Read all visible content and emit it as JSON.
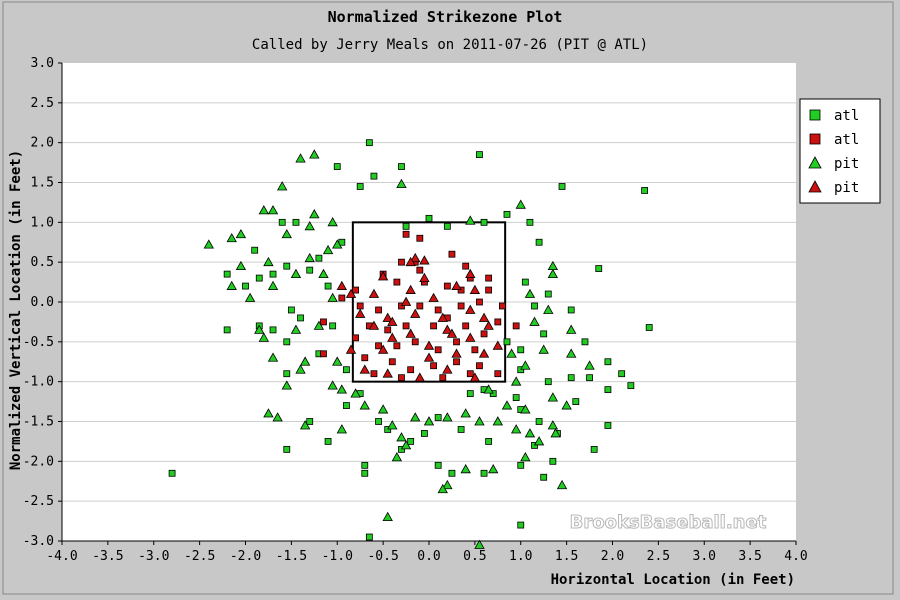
{
  "chart_data": {
    "type": "scatter",
    "title": "Normalized Strikezone Plot",
    "subtitle": "Called by Jerry Meals on 2011-07-26 (PIT @ ATL)",
    "xlabel": "Horizontal Location (in Feet)",
    "ylabel": "Normalized Vertical Location (in Feet)",
    "xlim": [
      -4.0,
      4.0
    ],
    "ylim": [
      -3.0,
      3.0
    ],
    "x_ticks": [
      "-4.0",
      "-3.5",
      "-3.0",
      "-2.5",
      "-2.0",
      "-1.5",
      "-1.0",
      "-0.5",
      "0.0",
      "0.5",
      "1.0",
      "1.5",
      "2.0",
      "2.5",
      "3.0",
      "3.5",
      "4.0"
    ],
    "y_ticks": [
      "3.0",
      "2.5",
      "2.0",
      "1.5",
      "1.0",
      "0.5",
      "0.0",
      "-0.5",
      "-1.0",
      "-1.5",
      "-2.0",
      "-2.5",
      "-3.0"
    ],
    "grid": "horizontal",
    "legend_position": "right",
    "strike_zone": {
      "x": [
        -0.83,
        0.83
      ],
      "y": [
        -1.0,
        1.0
      ]
    },
    "watermark": "BrooksBaseball.net",
    "colors": {
      "green": "#22cc22",
      "red": "#cc1111",
      "background": "#c8c8c8",
      "plot_bg": "#ffffff"
    },
    "series": [
      {
        "name": "atl",
        "marker": "square",
        "color": "#22cc22",
        "points": [
          [
            -0.65,
            2.0
          ],
          [
            -0.3,
            1.7
          ],
          [
            0.55,
            1.85
          ],
          [
            -0.75,
            1.45
          ],
          [
            -0.6,
            1.58
          ],
          [
            1.45,
            1.45
          ],
          [
            2.35,
            1.4
          ],
          [
            -1.0,
            1.7
          ],
          [
            0.0,
            1.05
          ],
          [
            0.85,
            1.1
          ],
          [
            1.1,
            1.0
          ],
          [
            -1.6,
            1.0
          ],
          [
            -1.45,
            1.0
          ],
          [
            -0.95,
            0.75
          ],
          [
            -1.9,
            0.65
          ],
          [
            -2.2,
            0.35
          ],
          [
            -1.85,
            0.3
          ],
          [
            -1.7,
            0.35
          ],
          [
            -2.0,
            0.2
          ],
          [
            -1.55,
            0.45
          ],
          [
            -1.3,
            0.4
          ],
          [
            -1.2,
            0.55
          ],
          [
            -1.1,
            0.2
          ],
          [
            -1.5,
            -0.1
          ],
          [
            -1.7,
            -0.35
          ],
          [
            -1.85,
            -0.3
          ],
          [
            -2.2,
            -0.35
          ],
          [
            -1.55,
            -0.5
          ],
          [
            -1.4,
            -0.2
          ],
          [
            -1.05,
            -0.3
          ],
          [
            -1.2,
            -0.65
          ],
          [
            -1.55,
            -0.9
          ],
          [
            -0.9,
            -0.85
          ],
          [
            1.2,
            0.75
          ],
          [
            1.05,
            0.25
          ],
          [
            1.3,
            0.1
          ],
          [
            1.15,
            -0.05
          ],
          [
            1.25,
            -0.4
          ],
          [
            1.55,
            -0.1
          ],
          [
            1.7,
            -0.5
          ],
          [
            1.85,
            0.42
          ],
          [
            1.95,
            -0.75
          ],
          [
            2.1,
            -0.9
          ],
          [
            2.2,
            -1.05
          ],
          [
            1.75,
            -0.95
          ],
          [
            1.95,
            -1.1
          ],
          [
            1.55,
            -0.95
          ],
          [
            2.4,
            -0.32
          ],
          [
            1.0,
            -0.6
          ],
          [
            0.85,
            -0.5
          ],
          [
            1.0,
            -0.85
          ],
          [
            0.95,
            -1.2
          ],
          [
            1.0,
            -1.35
          ],
          [
            1.3,
            -1.0
          ],
          [
            1.2,
            -1.5
          ],
          [
            1.4,
            -1.65
          ],
          [
            1.6,
            -1.25
          ],
          [
            1.95,
            -1.55
          ],
          [
            1.8,
            -1.85
          ],
          [
            1.35,
            -2.0
          ],
          [
            1.25,
            -2.2
          ],
          [
            1.15,
            -1.8
          ],
          [
            1.0,
            -2.05
          ],
          [
            0.65,
            -1.75
          ],
          [
            0.6,
            -2.15
          ],
          [
            0.25,
            -2.15
          ],
          [
            0.1,
            -2.05
          ],
          [
            0.1,
            -1.45
          ],
          [
            0.35,
            -1.6
          ],
          [
            -0.05,
            -1.65
          ],
          [
            -0.2,
            -1.75
          ],
          [
            -0.3,
            -1.85
          ],
          [
            -0.45,
            -1.6
          ],
          [
            -0.55,
            -1.5
          ],
          [
            -0.75,
            -1.15
          ],
          [
            -0.9,
            -1.3
          ],
          [
            -1.1,
            -1.75
          ],
          [
            -1.3,
            -1.5
          ],
          [
            -1.55,
            -1.85
          ],
          [
            -0.7,
            -2.05
          ],
          [
            -0.7,
            -2.15
          ],
          [
            -2.8,
            -2.15
          ],
          [
            -0.65,
            -2.95
          ],
          [
            1.0,
            -2.8
          ],
          [
            0.45,
            -1.15
          ],
          [
            0.6,
            -1.1
          ],
          [
            0.7,
            -1.15
          ],
          [
            -0.25,
            0.95
          ],
          [
            0.2,
            0.95
          ],
          [
            0.6,
            1.0
          ]
        ]
      },
      {
        "name": "atl",
        "marker": "square",
        "color": "#cc1111",
        "points": [
          [
            -0.25,
            0.85
          ],
          [
            -0.1,
            0.8
          ],
          [
            0.25,
            0.6
          ],
          [
            -0.3,
            0.5
          ],
          [
            -0.15,
            0.5
          ],
          [
            0.4,
            0.45
          ],
          [
            0.45,
            0.3
          ],
          [
            -0.5,
            0.35
          ],
          [
            -0.35,
            0.25
          ],
          [
            -0.05,
            0.25
          ],
          [
            0.2,
            0.2
          ],
          [
            0.65,
            0.15
          ],
          [
            -0.8,
            0.15
          ],
          [
            -0.75,
            -0.05
          ],
          [
            -0.55,
            -0.1
          ],
          [
            -0.3,
            -0.05
          ],
          [
            -0.1,
            -0.05
          ],
          [
            0.1,
            -0.1
          ],
          [
            0.35,
            -0.05
          ],
          [
            0.55,
            0.0
          ],
          [
            0.75,
            -0.25
          ],
          [
            -0.65,
            -0.3
          ],
          [
            -0.45,
            -0.35
          ],
          [
            -0.25,
            -0.3
          ],
          [
            0.05,
            -0.3
          ],
          [
            0.2,
            -0.2
          ],
          [
            0.4,
            -0.3
          ],
          [
            0.6,
            -0.4
          ],
          [
            -0.8,
            -0.45
          ],
          [
            -0.55,
            -0.55
          ],
          [
            -0.35,
            -0.55
          ],
          [
            -0.15,
            -0.5
          ],
          [
            0.1,
            -0.6
          ],
          [
            0.3,
            -0.5
          ],
          [
            0.5,
            -0.6
          ],
          [
            -0.7,
            -0.7
          ],
          [
            -0.4,
            -0.75
          ],
          [
            -0.2,
            -0.85
          ],
          [
            0.05,
            -0.8
          ],
          [
            0.3,
            -0.75
          ],
          [
            0.55,
            -0.8
          ],
          [
            0.75,
            -0.9
          ],
          [
            -0.6,
            -0.9
          ],
          [
            -0.3,
            -0.95
          ],
          [
            0.15,
            -0.95
          ],
          [
            0.45,
            -0.9
          ],
          [
            -1.15,
            -0.25
          ],
          [
            -1.15,
            -0.65
          ],
          [
            -0.95,
            0.05
          ],
          [
            0.8,
            -0.05
          ],
          [
            0.95,
            -0.3
          ],
          [
            0.35,
            0.15
          ],
          [
            -0.1,
            0.4
          ],
          [
            0.65,
            0.3
          ]
        ]
      },
      {
        "name": "pit",
        "marker": "triangle",
        "color": "#22cc22",
        "points": [
          [
            -1.4,
            1.8
          ],
          [
            -1.25,
            1.85
          ],
          [
            -0.3,
            1.48
          ],
          [
            -1.6,
            1.45
          ],
          [
            -1.05,
            1.0
          ],
          [
            -1.25,
            1.1
          ],
          [
            -1.3,
            0.95
          ],
          [
            -1.8,
            1.15
          ],
          [
            -1.7,
            1.15
          ],
          [
            -2.05,
            0.85
          ],
          [
            -2.15,
            0.8
          ],
          [
            -2.4,
            0.72
          ],
          [
            -1.55,
            0.85
          ],
          [
            -1.1,
            0.65
          ],
          [
            -1.3,
            0.55
          ],
          [
            -1.75,
            0.5
          ],
          [
            -2.05,
            0.45
          ],
          [
            -1.95,
            0.05
          ],
          [
            -2.15,
            0.2
          ],
          [
            -1.7,
            0.2
          ],
          [
            -1.45,
            0.35
          ],
          [
            -1.15,
            0.35
          ],
          [
            -1.05,
            0.05
          ],
          [
            -1.85,
            -0.35
          ],
          [
            -1.8,
            -0.45
          ],
          [
            -1.45,
            -0.35
          ],
          [
            -1.2,
            -0.3
          ],
          [
            -1.35,
            -0.75
          ],
          [
            -1.7,
            -0.7
          ],
          [
            -1.0,
            -0.75
          ],
          [
            -1.55,
            -1.05
          ],
          [
            -1.4,
            -0.85
          ],
          [
            -1.05,
            -1.05
          ],
          [
            -0.95,
            -1.1
          ],
          [
            -0.8,
            -1.15
          ],
          [
            -1.75,
            -1.4
          ],
          [
            -1.65,
            -1.45
          ],
          [
            -1.35,
            -1.55
          ],
          [
            -0.95,
            -1.6
          ],
          [
            -0.5,
            -1.35
          ],
          [
            -0.4,
            -1.55
          ],
          [
            -0.3,
            -1.7
          ],
          [
            -0.25,
            -1.8
          ],
          [
            -0.35,
            -1.95
          ],
          [
            -0.15,
            -1.45
          ],
          [
            0.0,
            -1.5
          ],
          [
            0.2,
            -1.45
          ],
          [
            0.4,
            -1.4
          ],
          [
            0.55,
            -1.5
          ],
          [
            0.75,
            -1.5
          ],
          [
            0.85,
            -1.3
          ],
          [
            0.65,
            -1.1
          ],
          [
            0.95,
            -1.6
          ],
          [
            1.05,
            -1.35
          ],
          [
            1.1,
            -1.65
          ],
          [
            1.2,
            -1.75
          ],
          [
            1.05,
            -1.95
          ],
          [
            0.7,
            -2.1
          ],
          [
            0.4,
            -2.1
          ],
          [
            0.2,
            -2.3
          ],
          [
            0.15,
            -2.35
          ],
          [
            1.35,
            -1.55
          ],
          [
            1.45,
            -2.3
          ],
          [
            -0.45,
            -2.7
          ],
          [
            0.55,
            -3.05
          ],
          [
            1.0,
            1.22
          ],
          [
            1.35,
            0.35
          ],
          [
            1.35,
            0.45
          ],
          [
            1.1,
            0.1
          ],
          [
            1.3,
            -0.1
          ],
          [
            1.15,
            -0.25
          ],
          [
            1.55,
            -0.35
          ],
          [
            1.25,
            -0.6
          ],
          [
            1.55,
            -0.65
          ],
          [
            1.75,
            -0.8
          ],
          [
            0.9,
            -0.65
          ],
          [
            1.05,
            -0.8
          ],
          [
            1.35,
            -1.2
          ],
          [
            1.5,
            -1.3
          ],
          [
            0.95,
            -1.0
          ],
          [
            -0.7,
            -1.3
          ],
          [
            -1.0,
            0.72
          ],
          [
            0.45,
            1.02
          ],
          [
            1.38,
            -1.65
          ]
        ]
      },
      {
        "name": "pit",
        "marker": "triangle",
        "color": "#cc1111",
        "points": [
          [
            -0.15,
            0.55
          ],
          [
            -0.05,
            0.52
          ],
          [
            -0.2,
            0.5
          ],
          [
            -0.5,
            0.32
          ],
          [
            -0.05,
            0.3
          ],
          [
            0.45,
            0.35
          ],
          [
            -0.95,
            0.2
          ],
          [
            -0.85,
            0.1
          ],
          [
            -0.6,
            0.1
          ],
          [
            -0.2,
            0.15
          ],
          [
            0.3,
            0.2
          ],
          [
            0.5,
            0.15
          ],
          [
            -0.75,
            -0.15
          ],
          [
            -0.45,
            -0.2
          ],
          [
            -0.15,
            -0.15
          ],
          [
            0.15,
            -0.2
          ],
          [
            0.45,
            -0.1
          ],
          [
            0.6,
            -0.2
          ],
          [
            -0.6,
            -0.3
          ],
          [
            -0.4,
            -0.25
          ],
          [
            -0.2,
            -0.4
          ],
          [
            0.2,
            -0.35
          ],
          [
            0.45,
            -0.45
          ],
          [
            0.65,
            -0.3
          ],
          [
            -0.85,
            -0.6
          ],
          [
            -0.5,
            -0.6
          ],
          [
            0.0,
            -0.55
          ],
          [
            0.3,
            -0.65
          ],
          [
            0.6,
            -0.65
          ],
          [
            -0.7,
            -0.85
          ],
          [
            -0.45,
            -0.9
          ],
          [
            -0.1,
            -0.95
          ],
          [
            0.2,
            -0.85
          ],
          [
            0.5,
            -0.95
          ],
          [
            -0.25,
            0.0
          ],
          [
            0.05,
            0.05
          ],
          [
            -0.4,
            -0.45
          ],
          [
            0.25,
            -0.4
          ],
          [
            0.75,
            -0.55
          ],
          [
            0.0,
            -0.7
          ]
        ]
      }
    ]
  }
}
